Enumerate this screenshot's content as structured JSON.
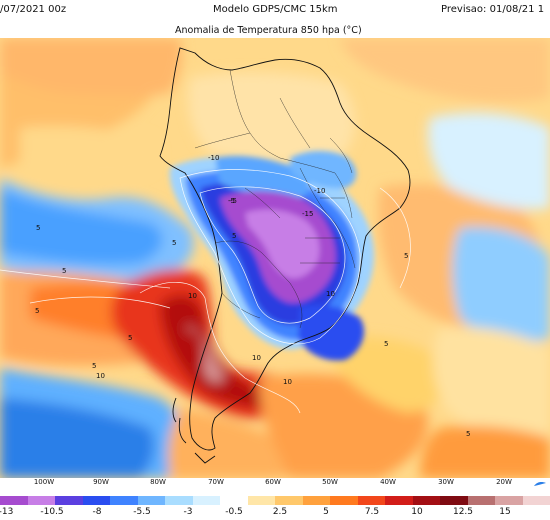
{
  "header": {
    "date_left": "/07/2021 00z",
    "model": "Modelo GDPS/CMC 15km",
    "forecast": "Previsao: 01/08/21 1",
    "title": "Anomalia de Temperatura 850 hpa (°C)"
  },
  "map": {
    "region": "South America",
    "contour_labels": [
      "10",
      "5",
      "-5",
      "-10",
      "-15",
      "-10",
      "-5",
      "5",
      "10",
      "5",
      "10",
      "5",
      "5",
      "10",
      "5",
      "5",
      "5",
      "5",
      "10",
      "5"
    ]
  },
  "longitudes": [
    "100W",
    "90W",
    "80W",
    "70W",
    "60W",
    "50W",
    "40W",
    "30W",
    "20W"
  ],
  "colorbar": {
    "ticks": [
      "-13",
      "-10.5",
      "-8",
      "-5.5",
      "-3",
      "-0.5",
      "2.5",
      "5",
      "7.5",
      "10",
      "12.5",
      "15"
    ],
    "colors": [
      "#a64ccf",
      "#c77ee6",
      "#5b3fe0",
      "#2a4df0",
      "#3f83ff",
      "#6fb6ff",
      "#a9ddff",
      "#d8f1ff",
      "#ffffff",
      "#ffe6a8",
      "#ffc86b",
      "#ffa13d",
      "#ff7a1f",
      "#f2471b",
      "#d21d19",
      "#a30f14",
      "#7f0b12",
      "#b87070",
      "#d9a3a3",
      "#f2d3d3"
    ]
  }
}
